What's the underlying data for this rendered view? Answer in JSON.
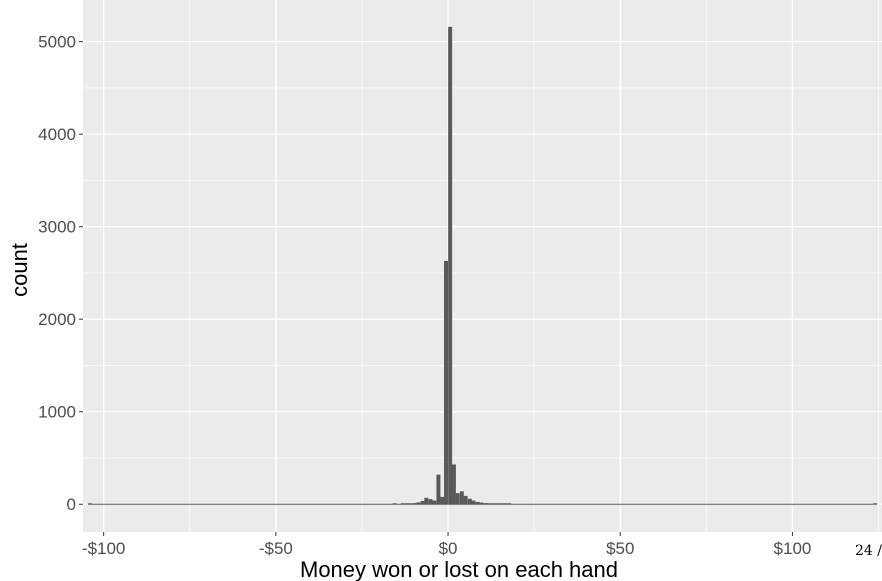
{
  "chart_data": {
    "type": "bar",
    "title": "",
    "xlabel": "Money won or lost on each hand",
    "ylabel": "count",
    "xlim": [
      -106,
      126
    ],
    "ylim": [
      -300,
      5450
    ],
    "x_ticks": [
      {
        "value": -100,
        "label": "-$100"
      },
      {
        "value": -50,
        "label": "-$50"
      },
      {
        "value": 0,
        "label": "$0"
      },
      {
        "value": 50,
        "label": "$50"
      },
      {
        "value": 100,
        "label": "$100"
      }
    ],
    "y_ticks": [
      {
        "value": 0,
        "label": "0"
      },
      {
        "value": 1000,
        "label": "1000"
      },
      {
        "value": 2000,
        "label": "2000"
      },
      {
        "value": 3000,
        "label": "3000"
      },
      {
        "value": 4000,
        "label": "4000"
      },
      {
        "value": 5000,
        "label": "5000"
      }
    ],
    "bin_width": 1.15,
    "bins": [
      {
        "x": -104.0,
        "count": 1
      },
      {
        "x": -15.5,
        "count": 3
      },
      {
        "x": -13.2,
        "count": 5
      },
      {
        "x": -12.0,
        "count": 10
      },
      {
        "x": -10.9,
        "count": 8
      },
      {
        "x": -9.7,
        "count": 12
      },
      {
        "x": -8.6,
        "count": 20
      },
      {
        "x": -7.4,
        "count": 35
      },
      {
        "x": -6.3,
        "count": 70
      },
      {
        "x": -5.1,
        "count": 55
      },
      {
        "x": -4.0,
        "count": 40
      },
      {
        "x": -2.8,
        "count": 320
      },
      {
        "x": -1.7,
        "count": 80
      },
      {
        "x": -0.6,
        "count": 2630
      },
      {
        "x": 0.6,
        "count": 5160
      },
      {
        "x": 1.7,
        "count": 430
      },
      {
        "x": 2.8,
        "count": 120
      },
      {
        "x": 4.0,
        "count": 140
      },
      {
        "x": 5.1,
        "count": 90
      },
      {
        "x": 6.3,
        "count": 60
      },
      {
        "x": 7.4,
        "count": 40
      },
      {
        "x": 8.6,
        "count": 25
      },
      {
        "x": 9.7,
        "count": 18
      },
      {
        "x": 10.9,
        "count": 12
      },
      {
        "x": 12.0,
        "count": 10
      },
      {
        "x": 13.2,
        "count": 8
      },
      {
        "x": 14.3,
        "count": 6
      },
      {
        "x": 15.5,
        "count": 5
      },
      {
        "x": 16.6,
        "count": 4
      },
      {
        "x": 17.8,
        "count": 6
      },
      {
        "x": 124.0,
        "count": 1
      }
    ],
    "grid": true,
    "legend": "none",
    "colors": {
      "panel": "#ebebeb",
      "grid": "#ffffff",
      "bar": "#595959",
      "axis_text": "#4d4d4d",
      "tick": "#333333"
    }
  },
  "page_number": "24 /"
}
